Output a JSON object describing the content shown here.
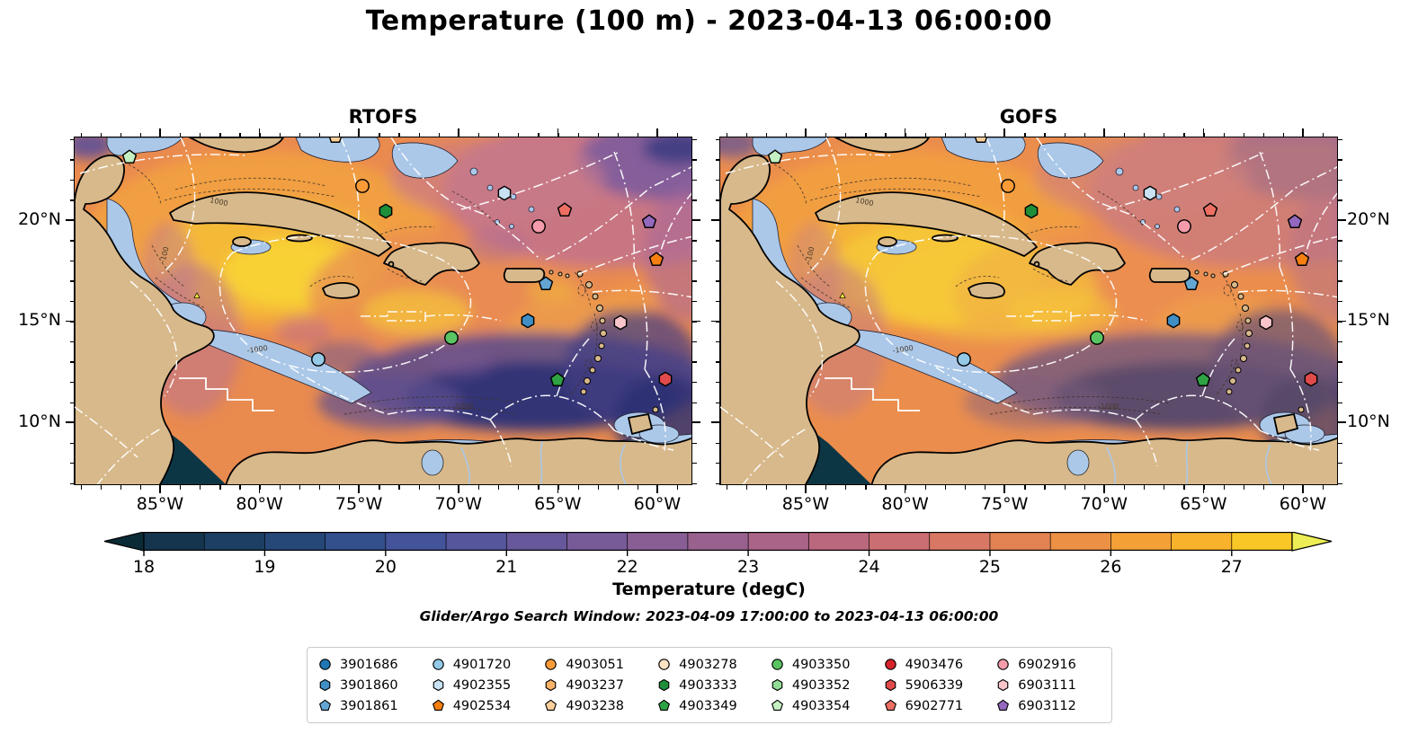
{
  "title": "Temperature (100 m) - 2023-04-13 06:00:00",
  "panels": [
    {
      "title": "RTOFS"
    },
    {
      "title": "GOFS"
    }
  ],
  "axes": {
    "lon_ticks": [
      "85°W",
      "80°W",
      "75°W",
      "70°W",
      "65°W",
      "60°W"
    ],
    "lat_ticks": [
      "20°N",
      "15°N",
      "10°N"
    ]
  },
  "colorbar": {
    "label": "Temperature (degC)",
    "ticks": [
      "18",
      "19",
      "20",
      "21",
      "22",
      "23",
      "24",
      "25",
      "26",
      "27"
    ],
    "under_color": "#0a2a36",
    "over_color": "#edee55",
    "segment_colors": [
      "#15354e",
      "#1c3f63",
      "#264878",
      "#33508d",
      "#44549b",
      "#56569d",
      "#67589b",
      "#775b98",
      "#885e94",
      "#98618e",
      "#a96487",
      "#ba687e",
      "#ca6e72",
      "#d87764",
      "#e38253",
      "#ec9045",
      "#f3a037",
      "#f8b22c",
      "#f9c726"
    ]
  },
  "search_window": "Glider/Argo Search Window: 2023-04-09 17:00:00 to 2023-04-13 06:00:00",
  "legend": {
    "entries": [
      {
        "id": "3901686",
        "shape": "circle",
        "color": "#2077b4"
      },
      {
        "id": "3901860",
        "shape": "hexagon",
        "color": "#3f8fc5"
      },
      {
        "id": "3901861",
        "shape": "pentagon",
        "color": "#64a6d2"
      },
      {
        "id": "4901720",
        "shape": "circle",
        "color": "#94cae8"
      },
      {
        "id": "4902355",
        "shape": "hexagon",
        "color": "#c9e2f3"
      },
      {
        "id": "4902534",
        "shape": "pentagon",
        "color": "#f67f10"
      },
      {
        "id": "4903051",
        "shape": "circle",
        "color": "#fb9b38"
      },
      {
        "id": "4903237",
        "shape": "hexagon",
        "color": "#fcb268"
      },
      {
        "id": "4903238",
        "shape": "pentagon",
        "color": "#fdd09b"
      },
      {
        "id": "4903278",
        "shape": "circle",
        "color": "#fce3c3"
      },
      {
        "id": "4903333",
        "shape": "hexagon",
        "color": "#1e8e39"
      },
      {
        "id": "4903349",
        "shape": "pentagon",
        "color": "#2fa344"
      },
      {
        "id": "4903350",
        "shape": "circle",
        "color": "#5ac462"
      },
      {
        "id": "4903352",
        "shape": "hexagon",
        "color": "#92dc95"
      },
      {
        "id": "4903354",
        "shape": "pentagon",
        "color": "#c4f0c2"
      },
      {
        "id": "4903476",
        "shape": "circle",
        "color": "#d8232b"
      },
      {
        "id": "5906339",
        "shape": "hexagon",
        "color": "#e24b4b"
      },
      {
        "id": "6902771",
        "shape": "pentagon",
        "color": "#ed6f62"
      },
      {
        "id": "6902916",
        "shape": "circle",
        "color": "#f49cab"
      },
      {
        "id": "6903111",
        "shape": "hexagon",
        "color": "#fac4cb"
      },
      {
        "id": "6903112",
        "shape": "pentagon",
        "color": "#9368bd"
      }
    ]
  },
  "map": {
    "contour_labels": [
      "-100",
      "1000",
      "-1000"
    ],
    "markers": [
      {
        "id": "4903354",
        "shape": "pentagon",
        "x": 8.87,
        "y": 5.67
      },
      {
        "id": "4903238",
        "shape": "pentagon",
        "x": 42.3,
        "y": -0.3
      },
      {
        "id": "4903051",
        "shape": "circle",
        "x": 46.66,
        "y": 13.92
      },
      {
        "id": "4903333",
        "shape": "hexagon",
        "x": 50.44,
        "y": 21.13
      },
      {
        "id": "4902355",
        "shape": "hexagon",
        "x": 69.62,
        "y": 15.98
      },
      {
        "id": "6902771",
        "shape": "pentagon",
        "x": 79.51,
        "y": 20.88
      },
      {
        "id": "6902916",
        "shape": "circle",
        "x": 75.29,
        "y": 25.77
      },
      {
        "id": "6903112",
        "shape": "pentagon",
        "x": 93.17,
        "y": 24.48
      },
      {
        "id": "4902534",
        "shape": "pentagon",
        "x": 94.33,
        "y": 35.31
      },
      {
        "id": "3901861",
        "shape": "pentagon",
        "x": 76.45,
        "y": 42.27
      },
      {
        "id": "3901860",
        "shape": "hexagon",
        "x": 73.4,
        "y": 52.84
      },
      {
        "id": "6903111",
        "shape": "hexagon",
        "x": 88.52,
        "y": 53.35
      },
      {
        "id": "4903350",
        "shape": "circle",
        "x": 61.05,
        "y": 57.73
      },
      {
        "id": "4901720",
        "shape": "circle",
        "x": 39.53,
        "y": 63.92
      },
      {
        "id": "4903349",
        "shape": "pentagon",
        "x": 78.34,
        "y": 69.85
      },
      {
        "id": "5906339",
        "shape": "hexagon",
        "x": 95.78,
        "y": 69.59
      },
      {
        "id": "glider",
        "shape": "triangle",
        "color": "#f2e33c",
        "x": 19.77,
        "y": 45.62,
        "size": 9
      }
    ]
  },
  "chart_data": {
    "type": "heatmap",
    "title": "Temperature (100 m) - 2023-04-13 06:00:00",
    "subplots": [
      "RTOFS",
      "GOFS"
    ],
    "variable": "Temperature (degC)",
    "depth_m": 100,
    "valid_time": "2023-04-13 06:00:00",
    "colorbar": {
      "label": "Temperature (degC)",
      "ticks": [
        18,
        19,
        20,
        21,
        22,
        23,
        24,
        25,
        26,
        27
      ],
      "range": [
        18,
        27.5
      ],
      "extended_both_ends": true
    },
    "x_axis": {
      "tick_labels": [
        "85°W",
        "80°W",
        "75°W",
        "70°W",
        "65°W",
        "60°W"
      ],
      "range_degW": [
        89.3,
        58.2
      ]
    },
    "y_axis": {
      "tick_labels": [
        "20°N",
        "15°N",
        "10°N"
      ],
      "range_degN": [
        6.9,
        24.1
      ]
    },
    "annotation": "Glider/Argo Search Window: 2023-04-09 17:00:00 to 2023-04-13 06:00:00",
    "platforms_in_legend": [
      "3901686",
      "3901860",
      "3901861",
      "4901720",
      "4902355",
      "4902534",
      "4903051",
      "4903237",
      "4903238",
      "4903278",
      "4903333",
      "4903349",
      "4903350",
      "4903352",
      "4903354",
      "4903476",
      "5906339",
      "6902771",
      "6902916",
      "6903111",
      "6903112"
    ],
    "visible_platform_positions": [
      {
        "id": "4903354",
        "lon_degW": 86.6,
        "lat_degN": 23.2
      },
      {
        "id": "4903238",
        "lon_degW": 76.2,
        "lat_degN": 24.1
      },
      {
        "id": "4903051",
        "lon_degW": 74.8,
        "lat_degN": 21.7
      },
      {
        "id": "4903333",
        "lon_degW": 73.6,
        "lat_degN": 20.5
      },
      {
        "id": "4902355",
        "lon_degW": 67.7,
        "lat_degN": 21.4
      },
      {
        "id": "6902771",
        "lon_degW": 64.6,
        "lat_degN": 20.5
      },
      {
        "id": "6902916",
        "lon_degW": 65.9,
        "lat_degN": 19.7
      },
      {
        "id": "6903112",
        "lon_degW": 60.4,
        "lat_degN": 19.9
      },
      {
        "id": "4902534",
        "lon_degW": 60.0,
        "lat_degN": 18.0
      },
      {
        "id": "3901861",
        "lon_degW": 65.6,
        "lat_degN": 16.8
      },
      {
        "id": "3901860",
        "lon_degW": 66.5,
        "lat_degN": 15.0
      },
      {
        "id": "6903111",
        "lon_degW": 61.8,
        "lat_degN": 14.9
      },
      {
        "id": "4903350",
        "lon_degW": 70.3,
        "lat_degN": 14.2
      },
      {
        "id": "4901720",
        "lon_degW": 77.0,
        "lat_degN": 13.1
      },
      {
        "id": "4903349",
        "lon_degW": 65.0,
        "lat_degN": 12.1
      },
      {
        "id": "5906339",
        "lon_degW": 59.6,
        "lat_degN": 12.1
      }
    ]
  }
}
